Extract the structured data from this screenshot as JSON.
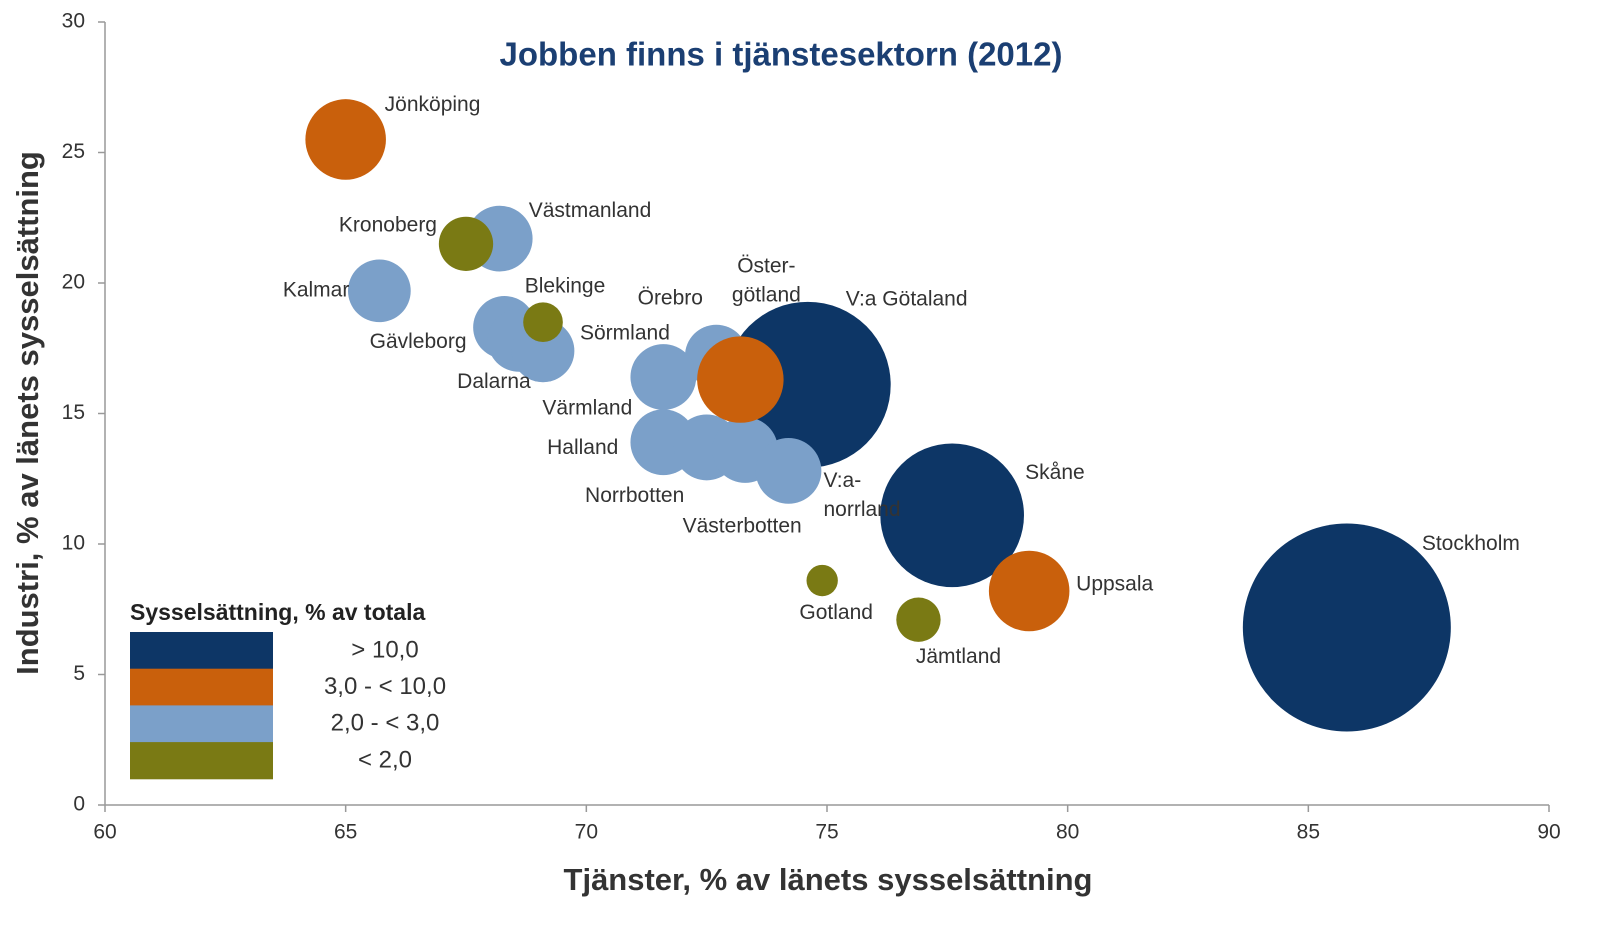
{
  "chart_data": {
    "type": "bubble",
    "title": "Jobben finns i tjänstesektorn (2012)",
    "xlabel": "Tjänster, % av länets sysselsättning",
    "ylabel": "Industri, % av länets sysselsättning",
    "xlim": [
      60,
      90
    ],
    "ylim": [
      0,
      30
    ],
    "xticks": [
      60,
      65,
      70,
      75,
      80,
      85,
      90
    ],
    "yticks": [
      0,
      5,
      10,
      15,
      20,
      25,
      30
    ],
    "legend_title": "Sysselsättning, % av totala",
    "series": [
      {
        "name": "> 10,0",
        "color": "#0d3666",
        "labels": [
          "V:a Götaland",
          "Skåne",
          "Stockholm"
        ],
        "x": [
          74.6,
          77.6,
          85.8
        ],
        "y": [
          16.1,
          11.1,
          6.8
        ],
        "size": [
          14,
          10.5,
          22
        ]
      },
      {
        "name": "2,0 - < 3,0",
        "color": "#7ba0c9",
        "labels": [
          "Västmanland",
          "Kalmar",
          "Gävleborg",
          "Dalarna",
          "Sörmland",
          "Örebro",
          "Värmland",
          "Halland",
          "Norrbotten",
          "Västerbotten",
          [
            "V:a-",
            "norrland"
          ]
        ],
        "x": [
          68.2,
          65.7,
          68.3,
          68.6,
          69.1,
          72.7,
          71.6,
          71.6,
          72.5,
          73.3,
          74.2
        ],
        "y": [
          21.7,
          19.7,
          18.3,
          17.8,
          17.4,
          17.2,
          16.4,
          13.9,
          13.7,
          13.6,
          12.8
        ],
        "size": [
          2.2,
          2.0,
          2.0,
          2.0,
          2.0,
          2.0,
          2.2,
          2.2,
          2.2,
          2.2,
          2.2
        ]
      },
      {
        "name": "3,0 - < 10,0",
        "color": "#c9600c",
        "labels": [
          "Jönköping",
          [
            "Öster-",
            "götland"
          ],
          "Uppsala"
        ],
        "x": [
          65.0,
          73.2,
          79.2
        ],
        "y": [
          25.5,
          16.3,
          8.2
        ],
        "size": [
          3.3,
          3.8,
          3.3
        ]
      },
      {
        "name": "< 2,0",
        "color": "#7a7a14",
        "labels": [
          "Kronoberg",
          "Blekinge",
          "Gotland",
          "Jämtland"
        ],
        "x": [
          67.5,
          69.1,
          74.9,
          76.9
        ],
        "y": [
          21.5,
          18.5,
          8.6,
          7.1
        ],
        "size": [
          1.5,
          0.8,
          0.5,
          1.0
        ]
      }
    ]
  }
}
